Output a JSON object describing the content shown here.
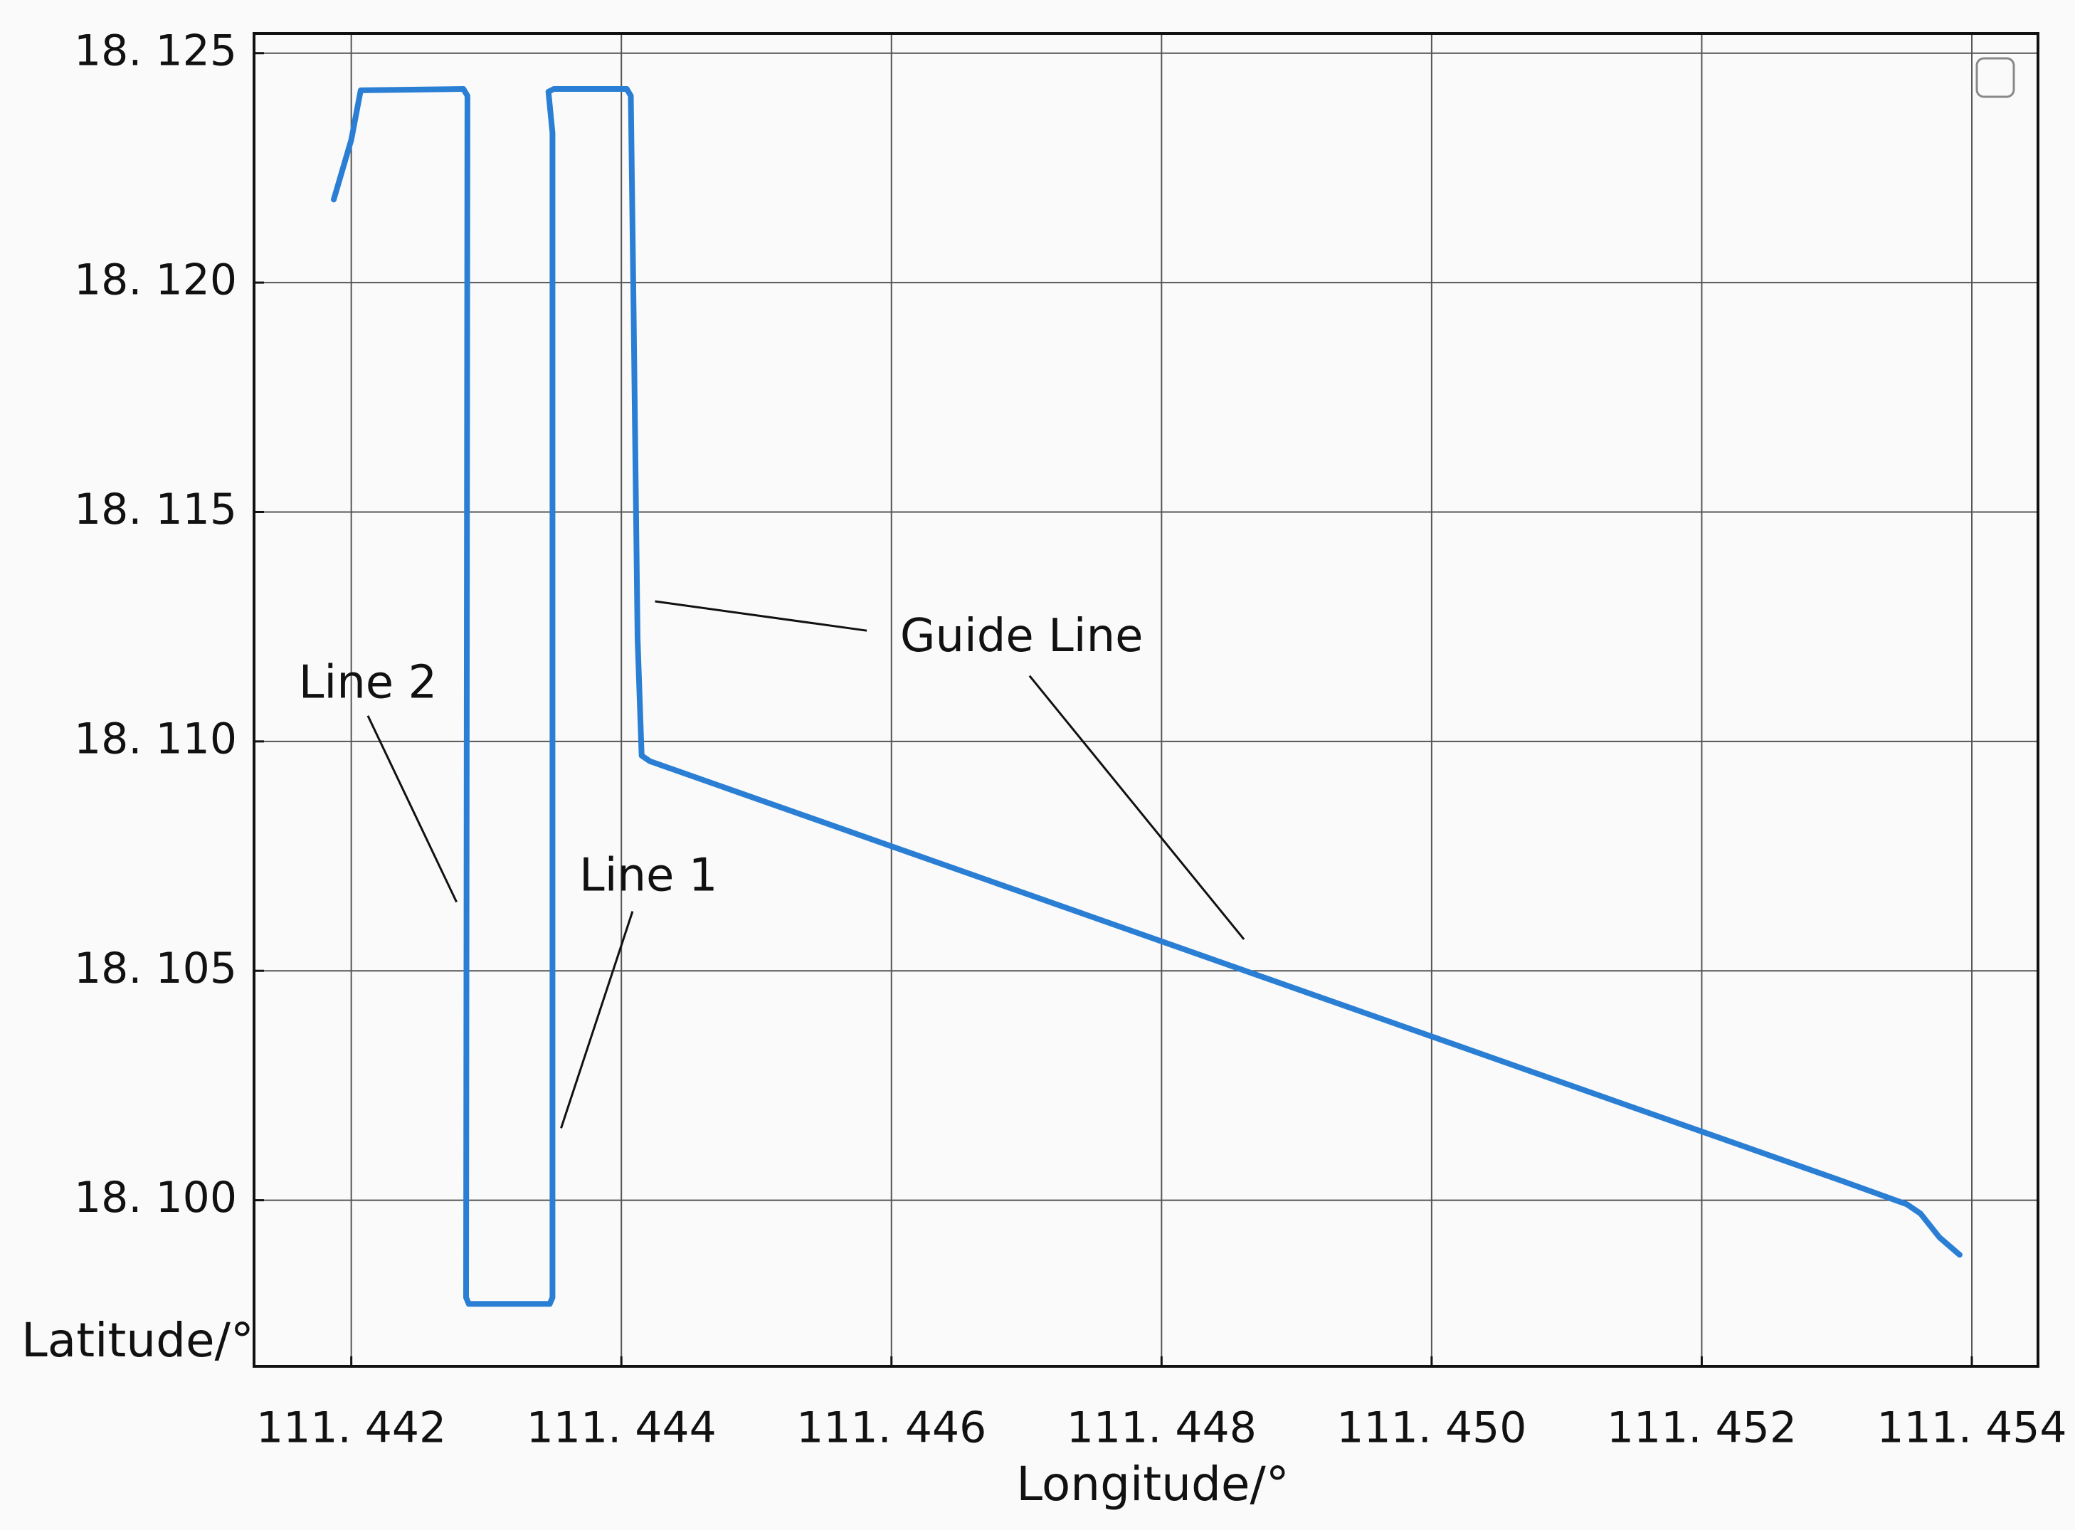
{
  "chart_data": {
    "type": "line",
    "x_label": "Longitude/°",
    "y_label": "Latitude/°",
    "xlim": [
      111.44128,
      111.45449
    ],
    "ylim": [
      18.09638,
      18.12543
    ],
    "xticks": [
      {
        "value": 111.442,
        "label": "111. 442"
      },
      {
        "value": 111.444,
        "label": "111. 444"
      },
      {
        "value": 111.446,
        "label": "111. 446"
      },
      {
        "value": 111.448,
        "label": "111. 448"
      },
      {
        "value": 111.45,
        "label": "111. 450"
      },
      {
        "value": 111.452,
        "label": "111. 452"
      },
      {
        "value": 111.454,
        "label": "111. 454"
      }
    ],
    "yticks": [
      {
        "value": 18.1,
        "label": "18. 100"
      },
      {
        "value": 18.105,
        "label": "18. 105"
      },
      {
        "value": 18.11,
        "label": "18. 110"
      },
      {
        "value": 18.115,
        "label": "18. 115"
      },
      {
        "value": 18.12,
        "label": "18. 120"
      },
      {
        "value": 18.125,
        "label": "18. 125"
      }
    ],
    "grid": true,
    "series": [
      {
        "color": "#2a7fd4",
        "x": [
          111.44187,
          111.442,
          111.44207,
          111.44283,
          111.44286,
          111.44285,
          111.44287,
          111.44347,
          111.44349,
          111.44349,
          111.44346,
          111.4435,
          111.44404,
          111.44407,
          111.44409,
          111.44412,
          111.44415,
          111.44421,
          111.45303,
          111.45352,
          111.45362,
          111.45376,
          111.45391
        ],
        "values": [
          18.12181,
          18.12311,
          18.12419,
          18.12422,
          18.12407,
          18.09788,
          18.09774,
          18.09774,
          18.09788,
          18.12326,
          18.12416,
          18.12422,
          18.12422,
          18.12407,
          18.11949,
          18.11224,
          18.10969,
          18.10957,
          18.10043,
          18.09991,
          18.09971,
          18.09919,
          18.09881
        ]
      }
    ],
    "annotations": [
      "Line 2",
      "Line 1",
      "Guide Line"
    ]
  }
}
